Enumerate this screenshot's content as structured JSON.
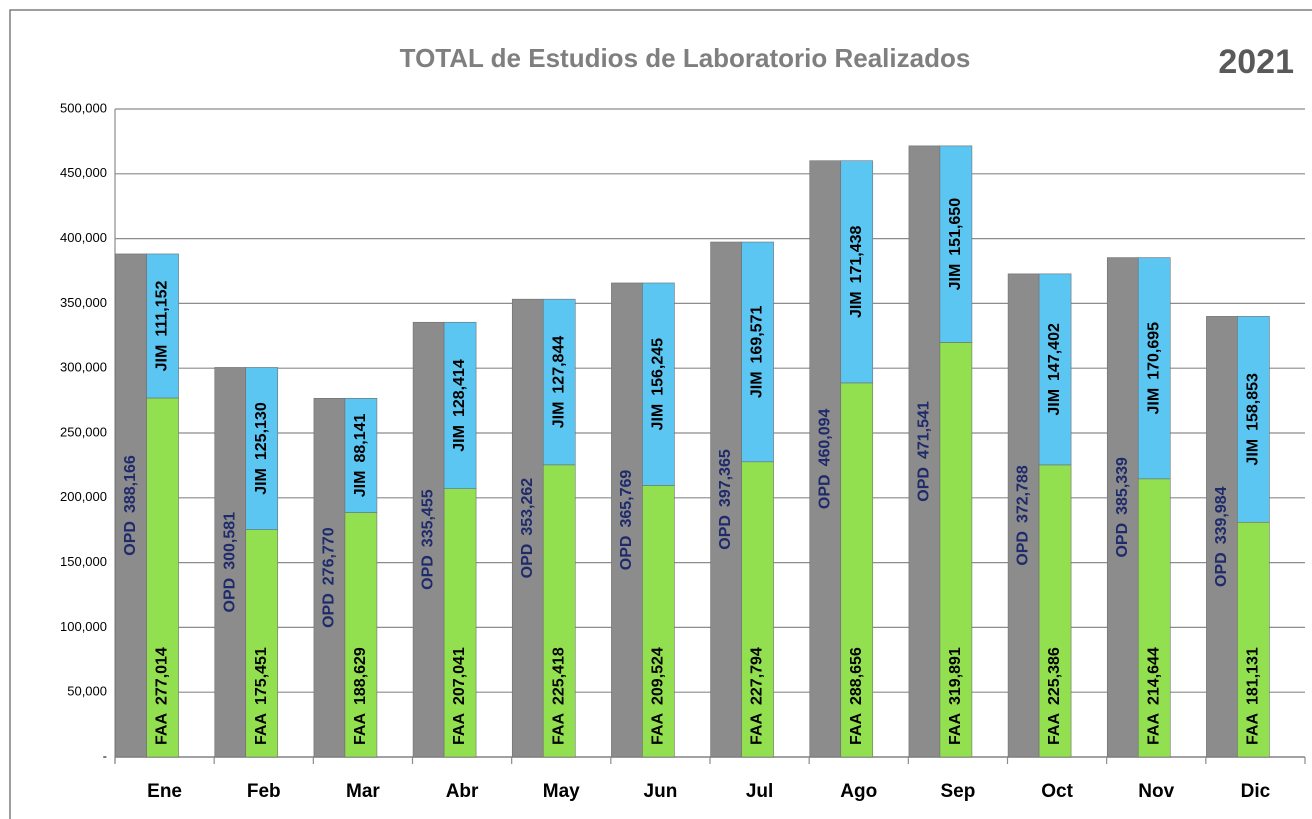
{
  "chart_data": {
    "type": "bar",
    "title": "TOTAL de Estudios de Laboratorio Realizados",
    "subtitle": "2021",
    "categories": [
      "Ene",
      "Feb",
      "Mar",
      "Abr",
      "May",
      "Jun",
      "Jul",
      "Ago",
      "Sep",
      "Oct",
      "Nov",
      "Dic"
    ],
    "series": [
      {
        "name": "OPD",
        "color": "#8c8c8c",
        "values": [
          388166,
          300581,
          276770,
          335455,
          353262,
          365769,
          397365,
          460094,
          471541,
          372788,
          385339,
          339984
        ],
        "value_labels": [
          "388,166",
          "300,581",
          "276,770",
          "335,455",
          "353,262",
          "365,769",
          "397,365",
          "460,094",
          "471,541",
          "372,788",
          "385,339",
          "339,984"
        ]
      },
      {
        "name": "FAA",
        "color": "#92e050",
        "values": [
          277014,
          175451,
          188629,
          207041,
          225418,
          209524,
          227794,
          288656,
          319891,
          225386,
          214644,
          181131
        ],
        "value_labels": [
          "277,014",
          "175,451",
          "188,629",
          "207,041",
          "225,418",
          "209,524",
          "227,794",
          "288,656",
          "319,891",
          "225,386",
          "214,644",
          "181,131"
        ]
      },
      {
        "name": "JIM",
        "color": "#5cc6f2",
        "values": [
          111152,
          125130,
          88141,
          128414,
          127844,
          156245,
          169571,
          171438,
          151650,
          147402,
          170695,
          158853
        ],
        "value_labels": [
          "111,152",
          "125,130",
          "88,141",
          "128,414",
          "127,844",
          "156,245",
          "169,571",
          "171,438",
          "151,650",
          "147,402",
          "170,695",
          "158,853"
        ]
      }
    ],
    "ylim": [
      0,
      500000
    ],
    "yticks": [
      {
        "value": 0,
        "label": "-"
      },
      {
        "value": 50000,
        "label": "50,000"
      },
      {
        "value": 100000,
        "label": "100,000"
      },
      {
        "value": 150000,
        "label": "150,000"
      },
      {
        "value": 200000,
        "label": "200,000"
      },
      {
        "value": 250000,
        "label": "250,000"
      },
      {
        "value": 300000,
        "label": "300,000"
      },
      {
        "value": 350000,
        "label": "350,000"
      },
      {
        "value": 400000,
        "label": "400,000"
      },
      {
        "value": 450000,
        "label": "450,000"
      },
      {
        "value": 500000,
        "label": "500,000"
      }
    ],
    "grid": true
  }
}
